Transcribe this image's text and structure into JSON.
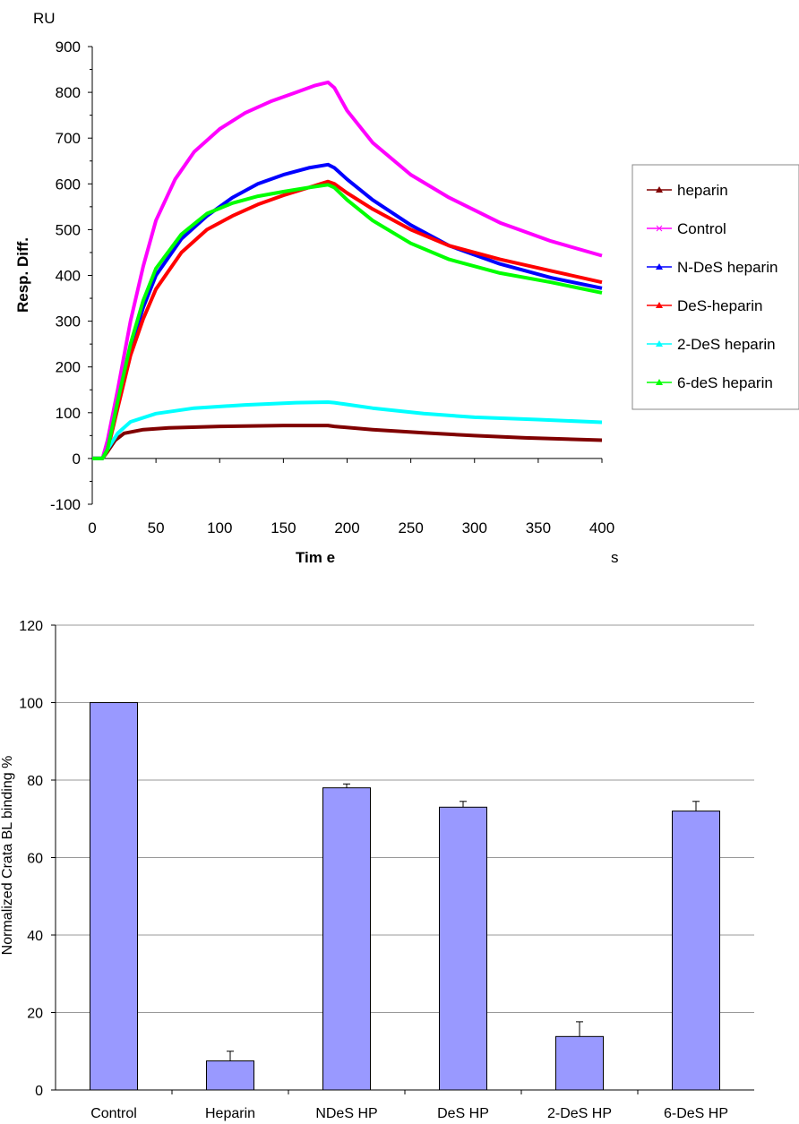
{
  "chart_data": [
    {
      "type": "line",
      "title": "",
      "xlabel": "Tim e",
      "ylabel": "Resp. Diff.",
      "x_unit": "s",
      "y_unit": "RU",
      "xlim": [
        0,
        400
      ],
      "ylim": [
        -100,
        900
      ],
      "x_ticks": [
        0,
        50,
        100,
        150,
        200,
        250,
        300,
        350,
        400
      ],
      "y_ticks": [
        -100,
        0,
        100,
        200,
        300,
        400,
        500,
        600,
        700,
        800,
        900
      ],
      "grid": false,
      "legend_position": "right",
      "series": [
        {
          "name": "heparin",
          "color": "#800000",
          "marker": "triangle",
          "points": [
            [
              0,
              0
            ],
            [
              8,
              0
            ],
            [
              12,
              15
            ],
            [
              18,
              40
            ],
            [
              25,
              55
            ],
            [
              40,
              63
            ],
            [
              60,
              67
            ],
            [
              100,
              70
            ],
            [
              150,
              72
            ],
            [
              185,
              72
            ],
            [
              190,
              70
            ],
            [
              220,
              63
            ],
            [
              260,
              56
            ],
            [
              300,
              50
            ],
            [
              340,
              45
            ],
            [
              400,
              40
            ]
          ]
        },
        {
          "name": "Control",
          "color": "#ff00ff",
          "marker": "x",
          "points": [
            [
              0,
              0
            ],
            [
              8,
              0
            ],
            [
              12,
              40
            ],
            [
              20,
              150
            ],
            [
              30,
              300
            ],
            [
              40,
              420
            ],
            [
              50,
              520
            ],
            [
              65,
              610
            ],
            [
              80,
              670
            ],
            [
              100,
              720
            ],
            [
              120,
              755
            ],
            [
              140,
              780
            ],
            [
              160,
              800
            ],
            [
              175,
              815
            ],
            [
              185,
              822
            ],
            [
              190,
              810
            ],
            [
              200,
              760
            ],
            [
              220,
              690
            ],
            [
              250,
              620
            ],
            [
              280,
              570
            ],
            [
              320,
              515
            ],
            [
              360,
              475
            ],
            [
              400,
              443
            ]
          ]
        },
        {
          "name": "N-DeS heparin",
          "color": "#0000ff",
          "marker": "triangle",
          "points": [
            [
              0,
              0
            ],
            [
              8,
              0
            ],
            [
              12,
              20
            ],
            [
              20,
              120
            ],
            [
              30,
              240
            ],
            [
              40,
              330
            ],
            [
              50,
              400
            ],
            [
              70,
              480
            ],
            [
              90,
              530
            ],
            [
              110,
              570
            ],
            [
              130,
              600
            ],
            [
              150,
              620
            ],
            [
              170,
              635
            ],
            [
              185,
              642
            ],
            [
              190,
              635
            ],
            [
              200,
              610
            ],
            [
              220,
              565
            ],
            [
              250,
              510
            ],
            [
              280,
              465
            ],
            [
              320,
              425
            ],
            [
              360,
              395
            ],
            [
              400,
              372
            ]
          ]
        },
        {
          "name": "DeS-heparin",
          "color": "#ff0000",
          "marker": "triangle",
          "points": [
            [
              0,
              0
            ],
            [
              8,
              0
            ],
            [
              12,
              18
            ],
            [
              20,
              110
            ],
            [
              30,
              225
            ],
            [
              40,
              305
            ],
            [
              50,
              370
            ],
            [
              70,
              450
            ],
            [
              90,
              500
            ],
            [
              110,
              530
            ],
            [
              130,
              555
            ],
            [
              150,
              575
            ],
            [
              170,
              592
            ],
            [
              185,
              605
            ],
            [
              190,
              600
            ],
            [
              200,
              580
            ],
            [
              220,
              545
            ],
            [
              250,
              500
            ],
            [
              280,
              465
            ],
            [
              320,
              435
            ],
            [
              360,
              410
            ],
            [
              400,
              385
            ]
          ]
        },
        {
          "name": "2-DeS heparin",
          "color": "#00ffff",
          "marker": "triangle",
          "points": [
            [
              0,
              0
            ],
            [
              8,
              0
            ],
            [
              12,
              20
            ],
            [
              20,
              55
            ],
            [
              30,
              80
            ],
            [
              50,
              98
            ],
            [
              80,
              110
            ],
            [
              120,
              117
            ],
            [
              160,
              122
            ],
            [
              185,
              123
            ],
            [
              190,
              122
            ],
            [
              220,
              110
            ],
            [
              260,
              98
            ],
            [
              300,
              90
            ],
            [
              350,
              85
            ],
            [
              400,
              79
            ]
          ]
        },
        {
          "name": "6-deS heparin",
          "color": "#00ff00",
          "marker": "triangle",
          "points": [
            [
              0,
              0
            ],
            [
              8,
              0
            ],
            [
              12,
              20
            ],
            [
              20,
              125
            ],
            [
              30,
              250
            ],
            [
              40,
              345
            ],
            [
              50,
              415
            ],
            [
              70,
              490
            ],
            [
              90,
              535
            ],
            [
              110,
              558
            ],
            [
              130,
              573
            ],
            [
              150,
              583
            ],
            [
              170,
              592
            ],
            [
              185,
              598
            ],
            [
              190,
              592
            ],
            [
              200,
              565
            ],
            [
              220,
              520
            ],
            [
              250,
              470
            ],
            [
              280,
              435
            ],
            [
              320,
              405
            ],
            [
              360,
              385
            ],
            [
              400,
              362
            ]
          ]
        }
      ]
    },
    {
      "type": "bar",
      "title": "",
      "xlabel": "",
      "ylabel": "Normalized Crata BL binding %",
      "ylim": [
        0,
        120
      ],
      "y_ticks": [
        0,
        20,
        40,
        60,
        80,
        100,
        120
      ],
      "grid": true,
      "bar_color": "#9999ff",
      "categories": [
        "Control",
        "Heparin",
        "NDeS HP",
        "DeS HP",
        "2-DeS HP",
        "6-DeS HP"
      ],
      "values": [
        100,
        7.5,
        78,
        73,
        13.8,
        72
      ],
      "errors": [
        0,
        2.5,
        1,
        1.5,
        3.8,
        2.5
      ]
    }
  ]
}
